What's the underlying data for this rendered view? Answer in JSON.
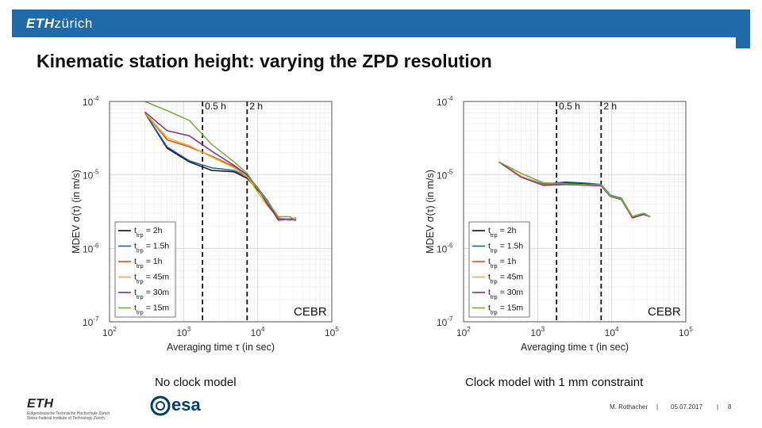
{
  "header": {
    "logo_bold": "ETH",
    "logo_rest": "zürich"
  },
  "slide_title": "Kinematic station height: varying the ZPD resolution",
  "legend": {
    "prefix": "t",
    "subscript": "trp",
    "items": [
      {
        "label": "= 2h",
        "color": "#111111"
      },
      {
        "label": "= 1.5h",
        "color": "#1f5f9e"
      },
      {
        "label": "= 1h",
        "color": "#d9541f"
      },
      {
        "label": "= 45m",
        "color": "#e6b02a"
      },
      {
        "label": "= 30m",
        "color": "#7b2f8e"
      },
      {
        "label": "= 15m",
        "color": "#76ab2f"
      }
    ]
  },
  "chart_data": [
    {
      "type": "line",
      "title": "",
      "xlabel": "Averaging time τ (in sec)",
      "ylabel": "MDEV σ(τ) (in m/s)",
      "xscale": "log",
      "yscale": "log",
      "xlim": [
        100,
        100000
      ],
      "ylim": [
        1e-07,
        0.0001
      ],
      "x_ticks": [
        {
          "base": "10",
          "exp": "2"
        },
        {
          "base": "10",
          "exp": "3"
        },
        {
          "base": "10",
          "exp": "4"
        },
        {
          "base": "10",
          "exp": "5"
        }
      ],
      "y_ticks": [
        {
          "base": "10",
          "exp": "-4"
        },
        {
          "base": "10",
          "exp": "-5"
        },
        {
          "base": "10",
          "exp": "-6"
        },
        {
          "base": "10",
          "exp": "-7"
        }
      ],
      "vlines": [
        {
          "x": 1800,
          "label": "0.5 h"
        },
        {
          "x": 7200,
          "label": "2 h"
        }
      ],
      "station": "CEBR",
      "caption": "No clock model",
      "x": [
        300,
        600,
        1200,
        2400,
        4800,
        7200,
        9600,
        13500,
        19000,
        27000,
        33000
      ],
      "series": [
        {
          "name": "t_trp = 2h",
          "values": [
            7e-05,
            2.3e-05,
            1.5e-05,
            1.15e-05,
            1.1e-05,
            9e-06,
            6.5e-06,
            4.5e-06,
            2.6e-06,
            2.4e-06,
            2.6e-06
          ]
        },
        {
          "name": "t_trp = 1.5h",
          "values": [
            7e-05,
            2.4e-05,
            1.55e-05,
            1.25e-05,
            1.15e-05,
            9.5e-06,
            7e-06,
            4.5e-06,
            2.5e-06,
            2.5e-06,
            2.5e-06
          ]
        },
        {
          "name": "t_trp = 1h",
          "values": [
            7e-05,
            3e-05,
            2.4e-05,
            1.8e-05,
            1.3e-05,
            1e-05,
            7e-06,
            4.2e-06,
            2.4e-06,
            2.5e-06,
            2.6e-06
          ]
        },
        {
          "name": "t_trp = 45m",
          "values": [
            7e-05,
            3.2e-05,
            2.5e-05,
            1.75e-05,
            1.25e-05,
            9.5e-06,
            6.2e-06,
            3.8e-06,
            2.6e-06,
            2.4e-06,
            2.6e-06
          ]
        },
        {
          "name": "t_trp = 30m",
          "values": [
            7.2e-05,
            4e-05,
            3.4e-05,
            2.1e-05,
            1.35e-05,
            1e-05,
            7e-06,
            4e-06,
            2.5e-06,
            2.5e-06,
            2.4e-06
          ]
        },
        {
          "name": "t_trp = 15m",
          "values": [
            0.0001,
            7.5e-05,
            5.5e-05,
            2.6e-05,
            1.5e-05,
            1.05e-05,
            6.8e-06,
            4.4e-06,
            2.7e-06,
            2.7e-06,
            2.4e-06
          ]
        }
      ]
    },
    {
      "type": "line",
      "title": "",
      "xlabel": "Averaging time τ (in sec)",
      "ylabel": "MDEV σ(τ) (in m/s)",
      "xscale": "log",
      "yscale": "log",
      "xlim": [
        100,
        100000
      ],
      "ylim": [
        1e-07,
        0.0001
      ],
      "x_ticks": [
        {
          "base": "10",
          "exp": "2"
        },
        {
          "base": "10",
          "exp": "3"
        },
        {
          "base": "10",
          "exp": "4"
        },
        {
          "base": "10",
          "exp": "5"
        }
      ],
      "y_ticks": [
        {
          "base": "10",
          "exp": "-4"
        },
        {
          "base": "10",
          "exp": "-5"
        },
        {
          "base": "10",
          "exp": "-6"
        },
        {
          "base": "10",
          "exp": "-7"
        }
      ],
      "vlines": [
        {
          "x": 1800,
          "label": "0.5 h"
        },
        {
          "x": 7200,
          "label": "2 h"
        }
      ],
      "station": "CEBR",
      "caption": "Clock model with 1 mm constraint",
      "x": [
        300,
        600,
        1200,
        2400,
        4800,
        7200,
        9600,
        13500,
        19000,
        27000,
        33000
      ],
      "series": [
        {
          "name": "t_trp = 2h",
          "values": [
            1.5e-05,
            9.5e-06,
            7.4e-06,
            7.8e-06,
            7.6e-06,
            7.3e-06,
            5.2e-06,
            4.8e-06,
            2.7e-06,
            2.9e-06,
            2.7e-06
          ]
        },
        {
          "name": "t_trp = 1.5h",
          "values": [
            1.5e-05,
            9.5e-06,
            7.5e-06,
            8e-06,
            7.7e-06,
            7.4e-06,
            5.3e-06,
            4.8e-06,
            2.7e-06,
            3e-06,
            2.7e-06
          ]
        },
        {
          "name": "t_trp = 1h",
          "values": [
            1.5e-05,
            9.5e-06,
            7.3e-06,
            7.5e-06,
            7.3e-06,
            7.2e-06,
            5.1e-06,
            4.7e-06,
            2.6e-06,
            2.9e-06,
            2.7e-06
          ]
        },
        {
          "name": "t_trp = 45m",
          "values": [
            1.5e-05,
            9.6e-06,
            7.3e-06,
            7.4e-06,
            7.3e-06,
            7.2e-06,
            5.1e-06,
            4.7e-06,
            2.7e-06,
            2.9e-06,
            2.7e-06
          ]
        },
        {
          "name": "t_trp = 30m",
          "values": [
            1.5e-05,
            9.3e-06,
            7.2e-06,
            7.4e-06,
            7.2e-06,
            7.1e-06,
            5.1e-06,
            4.6e-06,
            2.6e-06,
            2.9e-06,
            2.7e-06
          ]
        },
        {
          "name": "t_trp = 15m",
          "values": [
            1.5e-05,
            1.05e-05,
            7.8e-06,
            7.6e-06,
            7.3e-06,
            7.3e-06,
            5.2e-06,
            4.7e-06,
            2.7e-06,
            3e-06,
            2.7e-06
          ]
        }
      ]
    }
  ],
  "footer": {
    "eth_mark": "ETH",
    "eth_sub1": "Eidgenössische Technische Hochschule Zürich",
    "eth_sub2": "Swiss Federal Institute of Technology Zurich",
    "esa": "esa",
    "author": "M. Rothacher",
    "sep": "|",
    "date": "05.07.2017",
    "page": "8"
  }
}
